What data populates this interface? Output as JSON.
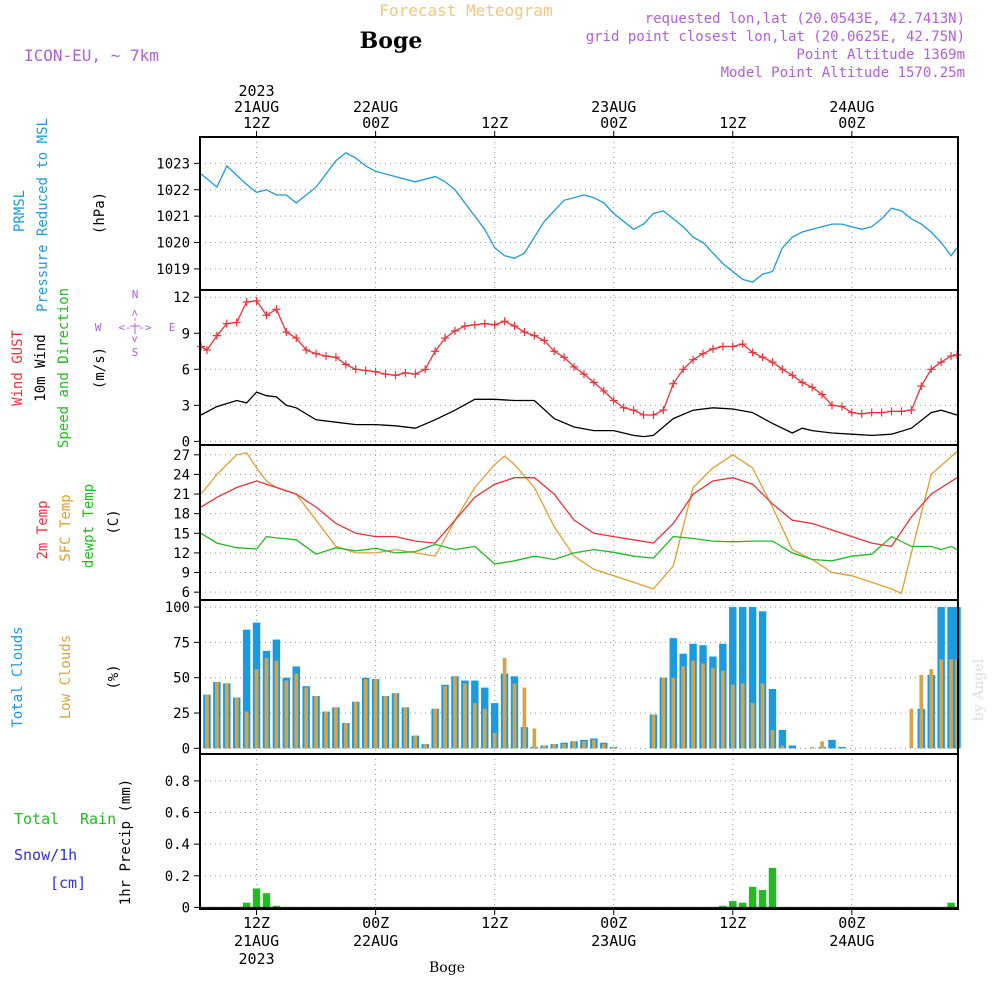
{
  "header": {
    "product": "Forecast Meteogram",
    "location": "Boge",
    "model": "ICON-EU, ~ 7km",
    "requested": "requested lon,lat (20.0543E, 42.7413N)",
    "grid_point": "grid point closest lon,lat (20.0625E, 42.75N)",
    "point_altitude": "Point Altitude 1369m",
    "model_altitude": "Model Point Altitude 1570.25m",
    "footer_location": "Boge",
    "watermark": "by Angel"
  },
  "time_axis": {
    "top_labels": [
      {
        "hour": 12,
        "lines": [
          "2023",
          "21AUG",
          "12Z"
        ]
      },
      {
        "hour": 24,
        "lines": [
          "22AUG",
          "00Z"
        ]
      },
      {
        "hour": 36,
        "lines": [
          "12Z"
        ]
      },
      {
        "hour": 48,
        "lines": [
          "23AUG",
          "00Z"
        ]
      },
      {
        "hour": 60,
        "lines": [
          "12Z"
        ]
      },
      {
        "hour": 72,
        "lines": [
          "24AUG",
          "00Z"
        ]
      }
    ],
    "bottom_labels": [
      {
        "hour": 12,
        "lines": [
          "12Z",
          "21AUG",
          "2023"
        ]
      },
      {
        "hour": 24,
        "lines": [
          "00Z",
          "22AUG"
        ]
      },
      {
        "hour": 36,
        "lines": [
          "12Z"
        ]
      },
      {
        "hour": 48,
        "lines": [
          "00Z",
          "23AUG"
        ]
      },
      {
        "hour": 60,
        "lines": [
          "12Z"
        ]
      },
      {
        "hour": 72,
        "lines": [
          "00Z",
          "24AUG"
        ]
      }
    ]
  },
  "colors": {
    "pressure": "#1e9bd7",
    "gust": "#e8333b",
    "wind": "#000000",
    "t2m": "#e8333b",
    "sfc": "#e0a030",
    "dew": "#22bb22",
    "total_clouds": "#1a9be0",
    "low_clouds": "#d4a44a",
    "rain": "#22bb22",
    "snow": "#3030e0",
    "header_orange": "#f0c880",
    "header_purple": "#b060d8"
  },
  "panels": {
    "pressure": {
      "labels": [
        "PRMSL",
        "Pressure Reduced to MSL"
      ],
      "unit": "(hPa)"
    },
    "wind": {
      "labels": [
        "Wind GUST",
        "10m Wind",
        "Speed and Direction"
      ],
      "unit": "(m/s)",
      "compass": {
        "n": "N",
        "s": "S",
        "w": "W",
        "e": "E",
        "arrow": "<-|->"
      }
    },
    "temp": {
      "labels": [
        "2m Temp",
        "SFC Temp",
        "dewpt Temp"
      ],
      "unit": "(C)"
    },
    "clouds": {
      "labels": [
        "Total Clouds",
        "Low Clouds"
      ],
      "unit": "(%)"
    },
    "precip": {
      "labels": [
        "Total",
        "Rain",
        "Snow/1h",
        "[cm]"
      ],
      "unit": "1hr Precip (mm)"
    }
  },
  "chart_data": {
    "type": "line",
    "x_unit": "hours from 2023-08-21 00Z",
    "x_range": [
      6.3,
      82.7
    ],
    "pressure": {
      "name": "PRMSL",
      "ylim": [
        1018.2,
        1024
      ],
      "yticks": [
        1019,
        1020,
        1021,
        1022,
        1023
      ],
      "x": [
        6.4,
        8,
        9,
        11,
        12,
        13,
        14,
        15,
        16,
        18,
        20,
        21,
        22,
        23,
        24,
        26,
        28,
        30,
        31,
        32,
        34,
        35,
        36,
        37,
        38,
        39,
        40,
        41,
        43,
        45,
        46,
        47,
        48,
        50,
        51,
        52,
        53,
        54,
        55,
        56,
        57,
        59,
        61,
        62,
        63,
        64,
        65,
        66,
        67,
        68,
        70,
        71,
        72,
        73,
        74,
        75,
        76,
        77,
        78,
        79,
        80,
        81,
        82,
        82.6
      ],
      "values": [
        1022.6,
        1022.1,
        1022.9,
        1022.2,
        1021.9,
        1022.0,
        1021.8,
        1021.8,
        1021.5,
        1022.1,
        1023.1,
        1023.4,
        1023.2,
        1022.9,
        1022.7,
        1022.5,
        1022.3,
        1022.5,
        1022.3,
        1022.0,
        1021.0,
        1020.5,
        1019.8,
        1019.5,
        1019.4,
        1019.6,
        1020.2,
        1020.8,
        1021.6,
        1021.8,
        1021.7,
        1021.5,
        1021.1,
        1020.5,
        1020.7,
        1021.1,
        1021.2,
        1020.9,
        1020.6,
        1020.2,
        1020.0,
        1019.2,
        1018.6,
        1018.5,
        1018.8,
        1018.9,
        1019.8,
        1020.2,
        1020.4,
        1020.5,
        1020.7,
        1020.7,
        1020.6,
        1020.5,
        1020.6,
        1020.9,
        1021.3,
        1021.2,
        1020.9,
        1020.7,
        1020.4,
        1020.0,
        1019.5,
        1019.8
      ]
    },
    "wind": {
      "ylim": [
        -0.3,
        12.6
      ],
      "yticks": [
        0,
        3,
        6,
        9,
        12
      ],
      "gust": {
        "name": "Wind GUST",
        "x": [
          6.4,
          7,
          8,
          9,
          10,
          11,
          12,
          13,
          14,
          15,
          16,
          17,
          18,
          19,
          20,
          21,
          22,
          23,
          24,
          25,
          26,
          27,
          28,
          29,
          30,
          31,
          32,
          33,
          34,
          35,
          36,
          37,
          38,
          39,
          40,
          41,
          42,
          43,
          44,
          45,
          46,
          47,
          48,
          49,
          50,
          51,
          52,
          53,
          54,
          55,
          56,
          57,
          58,
          59,
          60,
          61,
          62,
          63,
          64,
          65,
          66,
          67,
          68,
          69,
          70,
          71,
          72,
          73,
          74,
          75,
          76,
          77,
          78,
          79,
          80,
          81,
          82,
          82.6
        ],
        "values": [
          7.9,
          7.6,
          8.8,
          9.8,
          9.9,
          11.6,
          11.7,
          10.5,
          11.0,
          9.1,
          8.6,
          7.6,
          7.3,
          7.1,
          7.0,
          6.4,
          6.0,
          5.9,
          5.8,
          5.6,
          5.5,
          5.7,
          5.6,
          6.0,
          7.5,
          8.6,
          9.2,
          9.6,
          9.7,
          9.8,
          9.7,
          10.0,
          9.6,
          9.1,
          8.8,
          8.4,
          7.5,
          7.0,
          6.2,
          5.6,
          4.9,
          4.2,
          3.4,
          2.8,
          2.6,
          2.2,
          2.2,
          2.6,
          4.8,
          6.0,
          6.8,
          7.3,
          7.7,
          7.9,
          7.9,
          8.1,
          7.4,
          7.0,
          6.6,
          6.0,
          5.5,
          4.9,
          4.5,
          3.9,
          3.0,
          2.9,
          2.4,
          2.3,
          2.4,
          2.4,
          2.5,
          2.5,
          2.6,
          4.6,
          6.0,
          6.6,
          7.1,
          7.2
        ]
      },
      "speed": {
        "name": "10m Wind",
        "x": [
          6.4,
          8,
          10,
          11,
          12,
          13,
          14,
          15,
          16,
          18,
          20,
          22,
          24,
          26,
          28,
          30,
          32,
          34,
          36,
          38,
          40,
          42,
          44,
          46,
          48,
          50,
          51,
          52,
          53,
          54,
          56,
          58,
          60,
          62,
          64,
          66,
          67,
          68,
          70,
          72,
          74,
          76,
          78,
          80,
          81,
          82.6
        ],
        "values": [
          2.2,
          2.9,
          3.4,
          3.2,
          4.1,
          3.8,
          3.7,
          3.0,
          2.8,
          1.8,
          1.6,
          1.4,
          1.4,
          1.3,
          1.1,
          1.8,
          2.6,
          3.5,
          3.5,
          3.4,
          3.4,
          1.9,
          1.2,
          0.9,
          0.9,
          0.5,
          0.4,
          0.5,
          1.2,
          1.9,
          2.6,
          2.8,
          2.7,
          2.4,
          1.5,
          0.7,
          1.1,
          0.9,
          0.7,
          0.6,
          0.5,
          0.6,
          1.1,
          2.4,
          2.6,
          2.2
        ]
      }
    },
    "temperature": {
      "ylim": [
        4.8,
        28.5
      ],
      "yticks": [
        6,
        9,
        12,
        15,
        18,
        21,
        24,
        27
      ],
      "t2m": {
        "name": "2m Temp",
        "x": [
          6.4,
          8,
          10,
          12,
          14,
          16,
          18,
          20,
          22,
          24,
          26,
          28,
          30,
          32,
          34,
          36,
          38,
          40,
          42,
          44,
          46,
          48,
          50,
          52,
          54,
          56,
          58,
          60,
          62,
          64,
          66,
          68,
          70,
          72,
          74,
          76,
          78,
          80,
          82.6
        ],
        "values": [
          19.0,
          20.5,
          22.0,
          23.0,
          22.0,
          21.0,
          19.0,
          16.5,
          15.0,
          14.5,
          14.5,
          13.8,
          13.5,
          17.0,
          20.5,
          22.5,
          23.5,
          23.5,
          21.0,
          17.0,
          15.0,
          14.5,
          14.0,
          13.5,
          16.5,
          21.0,
          23.0,
          23.5,
          22.5,
          19.5,
          17.0,
          16.5,
          15.5,
          14.5,
          13.5,
          13.0,
          17.5,
          21.0,
          23.5
        ]
      },
      "sfc": {
        "name": "SFC Temp",
        "x": [
          6.4,
          8,
          10,
          11,
          12,
          13,
          14,
          16,
          18,
          20,
          22,
          24,
          26,
          28,
          30,
          32,
          34,
          36,
          37,
          38,
          40,
          42,
          44,
          46,
          48,
          50,
          52,
          54,
          56,
          58,
          60,
          62,
          64,
          66,
          68,
          70,
          72,
          74,
          76,
          77,
          78,
          80,
          82.6
        ],
        "values": [
          21.0,
          24.0,
          27.0,
          27.3,
          25.0,
          23.0,
          22.0,
          21.0,
          17.0,
          13.0,
          12.0,
          12.0,
          12.5,
          12.0,
          11.5,
          17.0,
          22.0,
          25.5,
          26.8,
          25.5,
          22.0,
          16.0,
          11.5,
          9.5,
          8.5,
          7.5,
          6.5,
          10.0,
          22.0,
          25.0,
          27.0,
          25.0,
          19.0,
          12.5,
          11.0,
          9.0,
          8.5,
          7.5,
          6.5,
          5.8,
          12.0,
          24.0,
          27.5
        ]
      },
      "dewpoint": {
        "name": "dewpt Temp",
        "x": [
          6.4,
          8,
          10,
          12,
          13,
          14,
          16,
          18,
          20,
          22,
          24,
          26,
          28,
          30,
          32,
          34,
          36,
          38,
          40,
          42,
          44,
          46,
          48,
          50,
          52,
          54,
          56,
          58,
          60,
          62,
          64,
          66,
          68,
          70,
          72,
          74,
          76,
          78,
          80,
          81,
          82,
          82.6
        ],
        "values": [
          15.0,
          13.5,
          12.8,
          12.6,
          14.5,
          14.3,
          14.0,
          11.8,
          12.8,
          12.3,
          12.7,
          12.0,
          12.2,
          13.3,
          12.5,
          13.0,
          10.3,
          10.8,
          11.5,
          11.0,
          12.0,
          12.5,
          12.1,
          11.5,
          11.2,
          14.5,
          14.2,
          13.8,
          13.7,
          13.8,
          13.8,
          12.0,
          11.0,
          10.8,
          11.5,
          11.8,
          14.5,
          13.0,
          13.0,
          12.5,
          13.0,
          12.5
        ]
      }
    },
    "clouds": {
      "ylim": [
        -4,
        105
      ],
      "yticks": [
        0,
        25,
        50,
        75,
        100
      ],
      "hours": [
        7,
        8,
        9,
        10,
        11,
        12,
        13,
        14,
        15,
        16,
        17,
        18,
        19,
        20,
        21,
        22,
        23,
        24,
        25,
        26,
        27,
        28,
        29,
        30,
        31,
        32,
        33,
        34,
        35,
        36,
        37,
        38,
        39,
        40,
        41,
        42,
        43,
        44,
        45,
        46,
        47,
        48,
        49,
        50,
        51,
        52,
        53,
        54,
        55,
        56,
        57,
        58,
        59,
        60,
        61,
        62,
        63,
        64,
        65,
        66,
        67,
        68,
        69,
        70,
        71,
        72,
        73,
        74,
        75,
        76,
        77,
        78,
        79,
        80,
        81,
        82,
        82.6
      ],
      "total": [
        38,
        47,
        46,
        36,
        84,
        89,
        69,
        77,
        50,
        58,
        44,
        37,
        26,
        29,
        18,
        33,
        50,
        49,
        37,
        39,
        29,
        9,
        3,
        28,
        45,
        51,
        48,
        48,
        43,
        32,
        53,
        51,
        15,
        1,
        2,
        3,
        4,
        5,
        6,
        7,
        4,
        1,
        0,
        0,
        0,
        24,
        50,
        78,
        67,
        74,
        73,
        65,
        74,
        100,
        100,
        100,
        97,
        42,
        13,
        2,
        0,
        0,
        1,
        6,
        1,
        0,
        0,
        0,
        0,
        0,
        0,
        0,
        28,
        52,
        100,
        100,
        100
      ],
      "low": [
        38,
        47,
        46,
        36,
        26,
        56,
        64,
        62,
        48,
        53,
        43,
        37,
        26,
        29,
        18,
        33,
        49,
        49,
        37,
        39,
        29,
        9,
        3,
        28,
        44,
        51,
        46,
        32,
        28,
        11,
        64,
        46,
        43,
        14,
        2,
        3,
        3,
        5,
        5,
        6,
        3,
        1,
        0,
        0,
        0,
        24,
        50,
        50,
        58,
        62,
        60,
        57,
        55,
        45,
        46,
        32,
        46,
        13,
        2,
        0,
        0,
        1,
        5,
        0,
        0,
        0,
        0,
        0,
        0,
        0,
        0,
        28,
        52,
        56,
        63,
        63,
        63
      ]
    },
    "precip": {
      "ylim": [
        -0.01,
        0.97
      ],
      "yticks": [
        0,
        0.2,
        0.4,
        0.6,
        0.8
      ],
      "hours": [
        11,
        12,
        13,
        14,
        59,
        60,
        61,
        62,
        63,
        64,
        82
      ],
      "rain": [
        0.03,
        0.12,
        0.09,
        0.01,
        0.01,
        0.04,
        0.03,
        0.13,
        0.11,
        0.25,
        0.03
      ],
      "snow": [
        0,
        0,
        0,
        0,
        0,
        0,
        0,
        0,
        0,
        0,
        0
      ]
    }
  }
}
